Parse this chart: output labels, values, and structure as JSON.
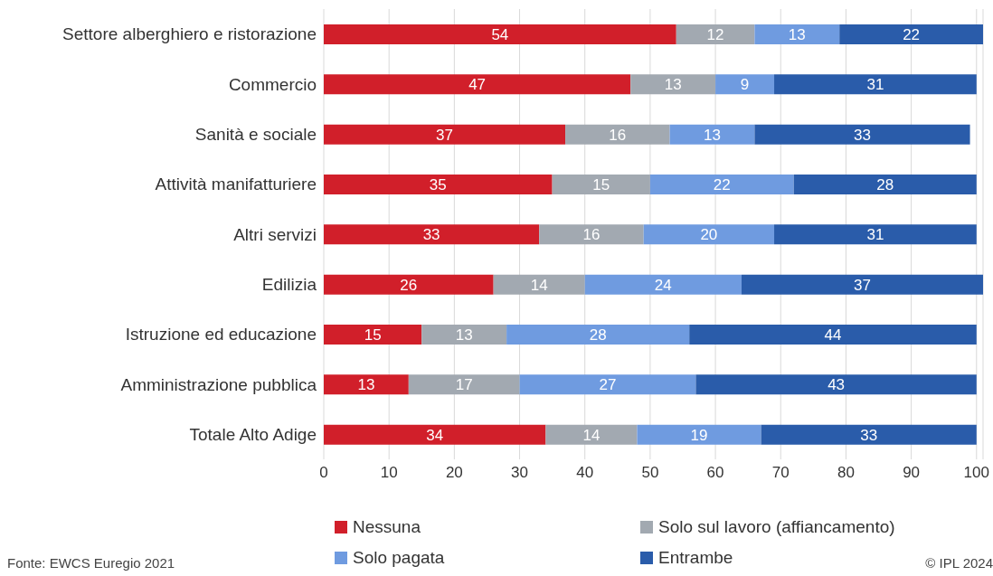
{
  "chart_data": {
    "type": "bar",
    "orientation": "horizontal",
    "stacked": true,
    "categories": [
      "Settore alberghiero e ristorazione",
      "Commercio",
      "Sanità e sociale",
      "Attività manifatturiere",
      "Altri servizi",
      "Edilizia",
      "Istruzione ed educazione",
      "Amministrazione pubblica",
      "Totale Alto Adige"
    ],
    "series": [
      {
        "name": "Nessuna",
        "color": "#d11f2a",
        "values": [
          54,
          47,
          37,
          35,
          33,
          26,
          15,
          13,
          34
        ]
      },
      {
        "name": "Solo sul lavoro (affiancamento)",
        "color": "#a2a9b1",
        "values": [
          12,
          13,
          16,
          15,
          16,
          14,
          13,
          17,
          14
        ]
      },
      {
        "name": "Solo pagata",
        "color": "#6f9be0",
        "values": [
          13,
          9,
          13,
          22,
          20,
          24,
          28,
          27,
          19
        ]
      },
      {
        "name": "Entrambe",
        "color": "#2a5caa",
        "values": [
          22,
          31,
          33,
          28,
          31,
          37,
          44,
          43,
          33
        ]
      }
    ],
    "xlim": [
      0,
      101
    ],
    "xticks": [
      0,
      10,
      20,
      30,
      40,
      50,
      60,
      70,
      80,
      90,
      100
    ],
    "grid": "x",
    "legend": "bottom",
    "data_labels": true,
    "annotations": [
      "Fonte: EWCS Euregio 2021",
      "© IPL 2024"
    ]
  }
}
